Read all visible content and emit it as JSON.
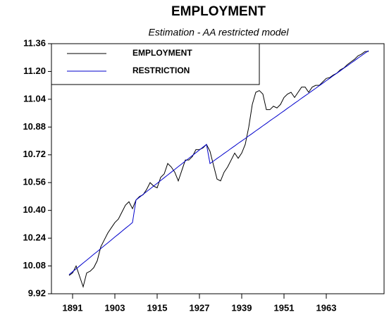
{
  "chart_data": {
    "type": "line",
    "title": "EMPLOYMENT",
    "subtitle": "Estimation - AA restricted model",
    "x": [
      1890,
      1891,
      1892,
      1893,
      1894,
      1895,
      1896,
      1897,
      1898,
      1899,
      1900,
      1901,
      1902,
      1903,
      1904,
      1905,
      1906,
      1907,
      1908,
      1909,
      1910,
      1911,
      1912,
      1913,
      1914,
      1915,
      1916,
      1917,
      1918,
      1919,
      1920,
      1921,
      1922,
      1923,
      1924,
      1925,
      1926,
      1927,
      1928,
      1929,
      1930,
      1931,
      1932,
      1933,
      1934,
      1935,
      1936,
      1937,
      1938,
      1939,
      1940,
      1941,
      1942,
      1943,
      1944,
      1945,
      1946,
      1947,
      1948,
      1949,
      1950,
      1951,
      1952,
      1953,
      1954,
      1955,
      1956,
      1957,
      1958,
      1959,
      1960,
      1961,
      1962,
      1963,
      1964,
      1965,
      1966,
      1967,
      1968,
      1969,
      1970,
      1971,
      1972,
      1973,
      1974,
      1975
    ],
    "series": [
      {
        "name": "EMPLOYMENT",
        "color": "#000000",
        "values": [
          10.025,
          10.04,
          10.08,
          10.02,
          9.96,
          10.04,
          10.05,
          10.07,
          10.11,
          10.19,
          10.23,
          10.27,
          10.3,
          10.33,
          10.35,
          10.39,
          10.43,
          10.45,
          10.41,
          10.46,
          10.48,
          10.49,
          10.52,
          10.56,
          10.54,
          10.53,
          10.59,
          10.61,
          10.67,
          10.65,
          10.62,
          10.57,
          10.63,
          10.69,
          10.69,
          10.71,
          10.75,
          10.75,
          10.76,
          10.78,
          10.74,
          10.66,
          10.58,
          10.57,
          10.62,
          10.65,
          10.69,
          10.73,
          10.7,
          10.73,
          10.78,
          10.88,
          11.01,
          11.08,
          11.09,
          11.07,
          10.98,
          10.98,
          11.0,
          10.99,
          11.01,
          11.05,
          11.07,
          11.08,
          11.05,
          11.08,
          11.11,
          11.11,
          11.08,
          11.11,
          11.12,
          11.12,
          11.14,
          11.16,
          11.165,
          11.18,
          11.19,
          11.21,
          11.22,
          11.24,
          11.255,
          11.27,
          11.29,
          11.3,
          11.315,
          11.315
        ]
      },
      {
        "name": "RESTRICTION",
        "color": "#0000cc",
        "values": [
          10.03,
          10.047,
          10.063,
          10.08,
          10.097,
          10.113,
          10.13,
          10.147,
          10.163,
          10.18,
          10.197,
          10.213,
          10.23,
          10.247,
          10.263,
          10.28,
          10.297,
          10.313,
          10.33,
          10.46,
          10.476,
          10.492,
          10.508,
          10.524,
          10.54,
          10.556,
          10.572,
          10.588,
          10.604,
          10.62,
          10.636,
          10.652,
          10.668,
          10.684,
          10.7,
          10.716,
          10.732,
          10.748,
          10.764,
          10.78,
          10.67,
          10.684,
          10.699,
          10.713,
          10.728,
          10.742,
          10.757,
          10.771,
          10.786,
          10.8,
          10.814,
          10.829,
          10.843,
          10.858,
          10.872,
          10.887,
          10.901,
          10.916,
          10.93,
          10.944,
          10.959,
          10.973,
          10.988,
          11.002,
          11.017,
          11.031,
          11.046,
          11.06,
          11.074,
          11.089,
          11.103,
          11.118,
          11.132,
          11.147,
          11.161,
          11.176,
          11.19,
          11.204,
          11.219,
          11.233,
          11.248,
          11.262,
          11.277,
          11.291,
          11.306,
          11.32
        ]
      }
    ],
    "xlim": [
      1885,
      1979.4
    ],
    "xticks": [
      1891,
      1903,
      1915,
      1927,
      1939,
      1951,
      1963
    ],
    "ylim": [
      9.92,
      11.36
    ],
    "yticks": [
      9.92,
      10.08,
      10.24,
      {
        "value": 10.4,
        "label": "10.40"
      },
      10.56,
      10.72,
      10.88,
      11.04,
      {
        "value": 11.2,
        "label": "11.20"
      },
      11.36
    ],
    "legend": "upper left"
  }
}
